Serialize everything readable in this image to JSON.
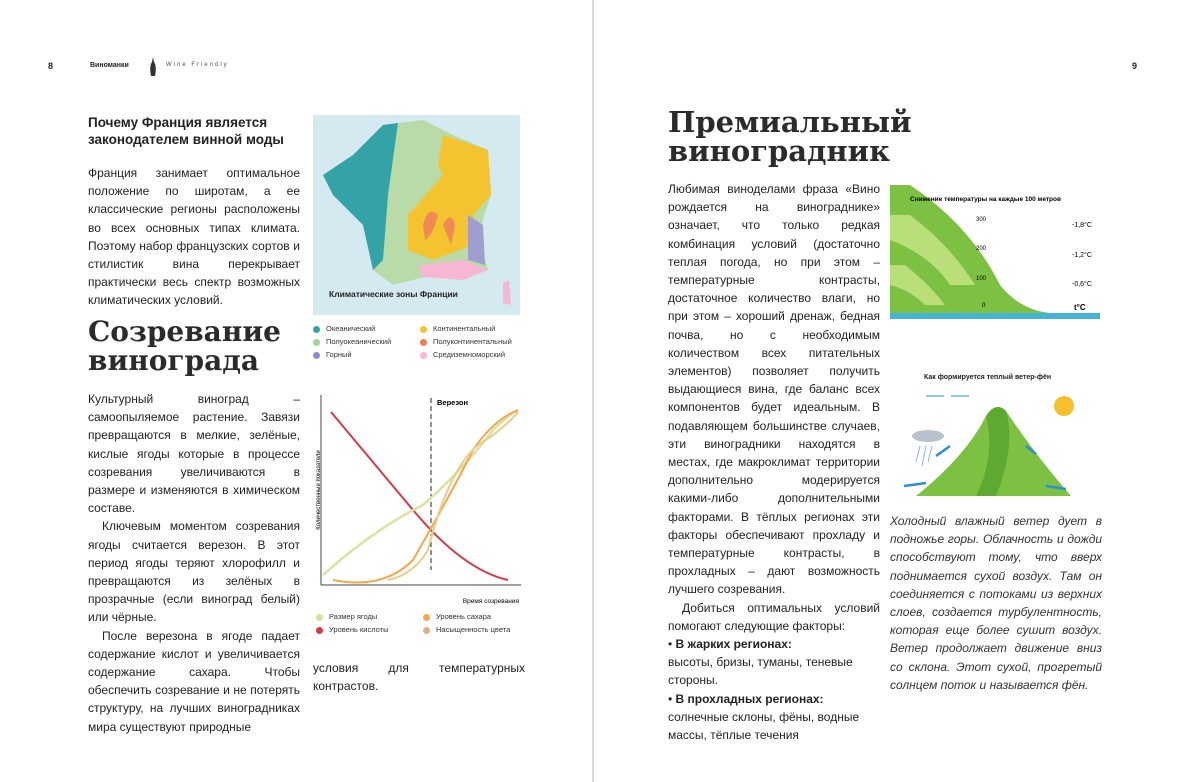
{
  "left_page": {
    "page_number": "8",
    "header_brand": "Виноманки",
    "header_sub": "Wine Friendly",
    "section1": {
      "title": "Почему Франция является законодателем винной моды",
      "paragraph": "Франция занимает оптимальное положение по широтам, а ее классические регионы расположены во всех основных типах климата. Поэтому набор французских сортов и стилистик вина перекрывает практически весь спектр возможных климатических условий."
    },
    "map": {
      "caption": "Климатические зоны Франции",
      "legend": [
        "Океанический",
        "Полуокеанический",
        "Горный",
        "Континентальный",
        "Полуконтинентальный",
        "Средиземноморский"
      ]
    },
    "section2": {
      "title": "Созревание винограда",
      "paragraphs": [
        "Культурный виноград – самоопыляемое растение. Завязи превращаются в мелкие, зелёные, кислые ягоды которые в процессе созревания увеличиваются в размере и изменяются в химическом составе.",
        "Ключевым моментом созревания ягоды считается верезон. В этот период ягоды теряют хлорофилл и превращаются из зелёных в прозрачные (если виноград белый) или чёрные.",
        "После верезона в ягоде падает содержание кислот и увеличивается содержание сахара. Чтобы обеспечить созревание и не потерять структуру, на лучших виноградниках мира существуют природные"
      ],
      "continuation": "условия для температурных контрастов."
    },
    "chart": {
      "veraison": "Верезон",
      "y_label": "Количественные показатели",
      "x_label": "Время созревания",
      "legend": [
        "Размер ягоды",
        "Уровень кислоты",
        "Уровень сахара",
        "Насыщенность цвета"
      ]
    }
  },
  "right_page": {
    "page_number": "9",
    "title": "Премиальный виноградник",
    "paragraphs": [
      "Любимая виноделами фраза «Вино рождается на винограднике» означает, что только редкая комбинация условий (достаточно теплая погода, но при этом – температурные контрасты, достаточное количество влаги, но при этом – хороший дренаж, бедная почва, но с необходимым количеством всех питательных элементов) позволяет получить выдающиеся вина, где баланс всех компонентов будет идеальным. В подавляющем большинстве случаев, эти виноградники находятся в местах, где макроклимат территории дополнительно модерируется какими-либо дополнительными факторами. В тёплых регионах эти факторы обеспечивают прохладу и температурные контрасты, в прохладных – дают возможность лучшего созревания.",
      "Добиться оптимальных условий помогают следующие факторы:"
    ],
    "list": [
      {
        "label": "В жарких регионах:",
        "text": "высоты, бризы, туманы, теневые стороны."
      },
      {
        "label": "В прохладных регионах:",
        "text": "солнечные склоны, фёны, водные массы, тёплые течения"
      }
    ],
    "figure1": {
      "title": "Снижение температуры на каждые 100 метров",
      "heights": [
        "300",
        "200",
        "100",
        "0"
      ],
      "temps": [
        "-1,8°C",
        "-1,2°C",
        "-0,6°C",
        "t°C"
      ]
    },
    "figure2": {
      "title": "Как формируется теплый ветер-фён",
      "caption": "Холодный влажный ветер дует в подножье горы. Облачность и дожди способствуют тому, что вверх поднимается сухой воздух. Там он соединяется с потоками из верхних слоев, создается турбулентность, которая еще более сушит воздух. Ветер продолжает движение вниз со склона. Этот сухой, прогретый солнцем поток и называется фён."
    }
  }
}
